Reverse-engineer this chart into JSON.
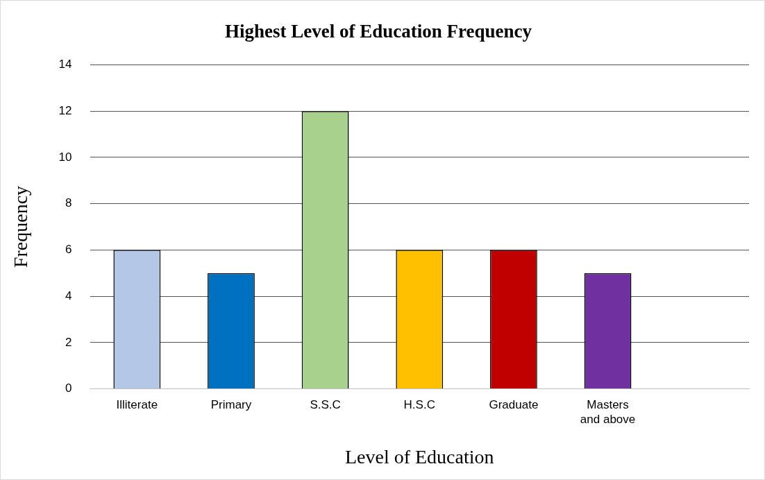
{
  "chart_data": {
    "type": "bar",
    "title": "Highest Level of Education Frequency",
    "xlabel": "Level of Education",
    "ylabel": "Frequency",
    "categories": [
      "Illiterate",
      "Primary",
      "S.S.C",
      "H.S.C",
      "Graduate",
      "Masters and above",
      null
    ],
    "values": [
      6,
      5,
      12,
      6,
      6,
      5,
      null
    ],
    "colors": [
      "#b4c7e7",
      "#0070c0",
      "#a9d18e",
      "#ffc000",
      "#c00000",
      "#7030a0",
      "#7030a0"
    ],
    "ylim": [
      0,
      14
    ],
    "yticks": [
      0,
      2,
      4,
      6,
      8,
      10,
      12,
      14
    ],
    "grid": "y",
    "legend": false
  }
}
